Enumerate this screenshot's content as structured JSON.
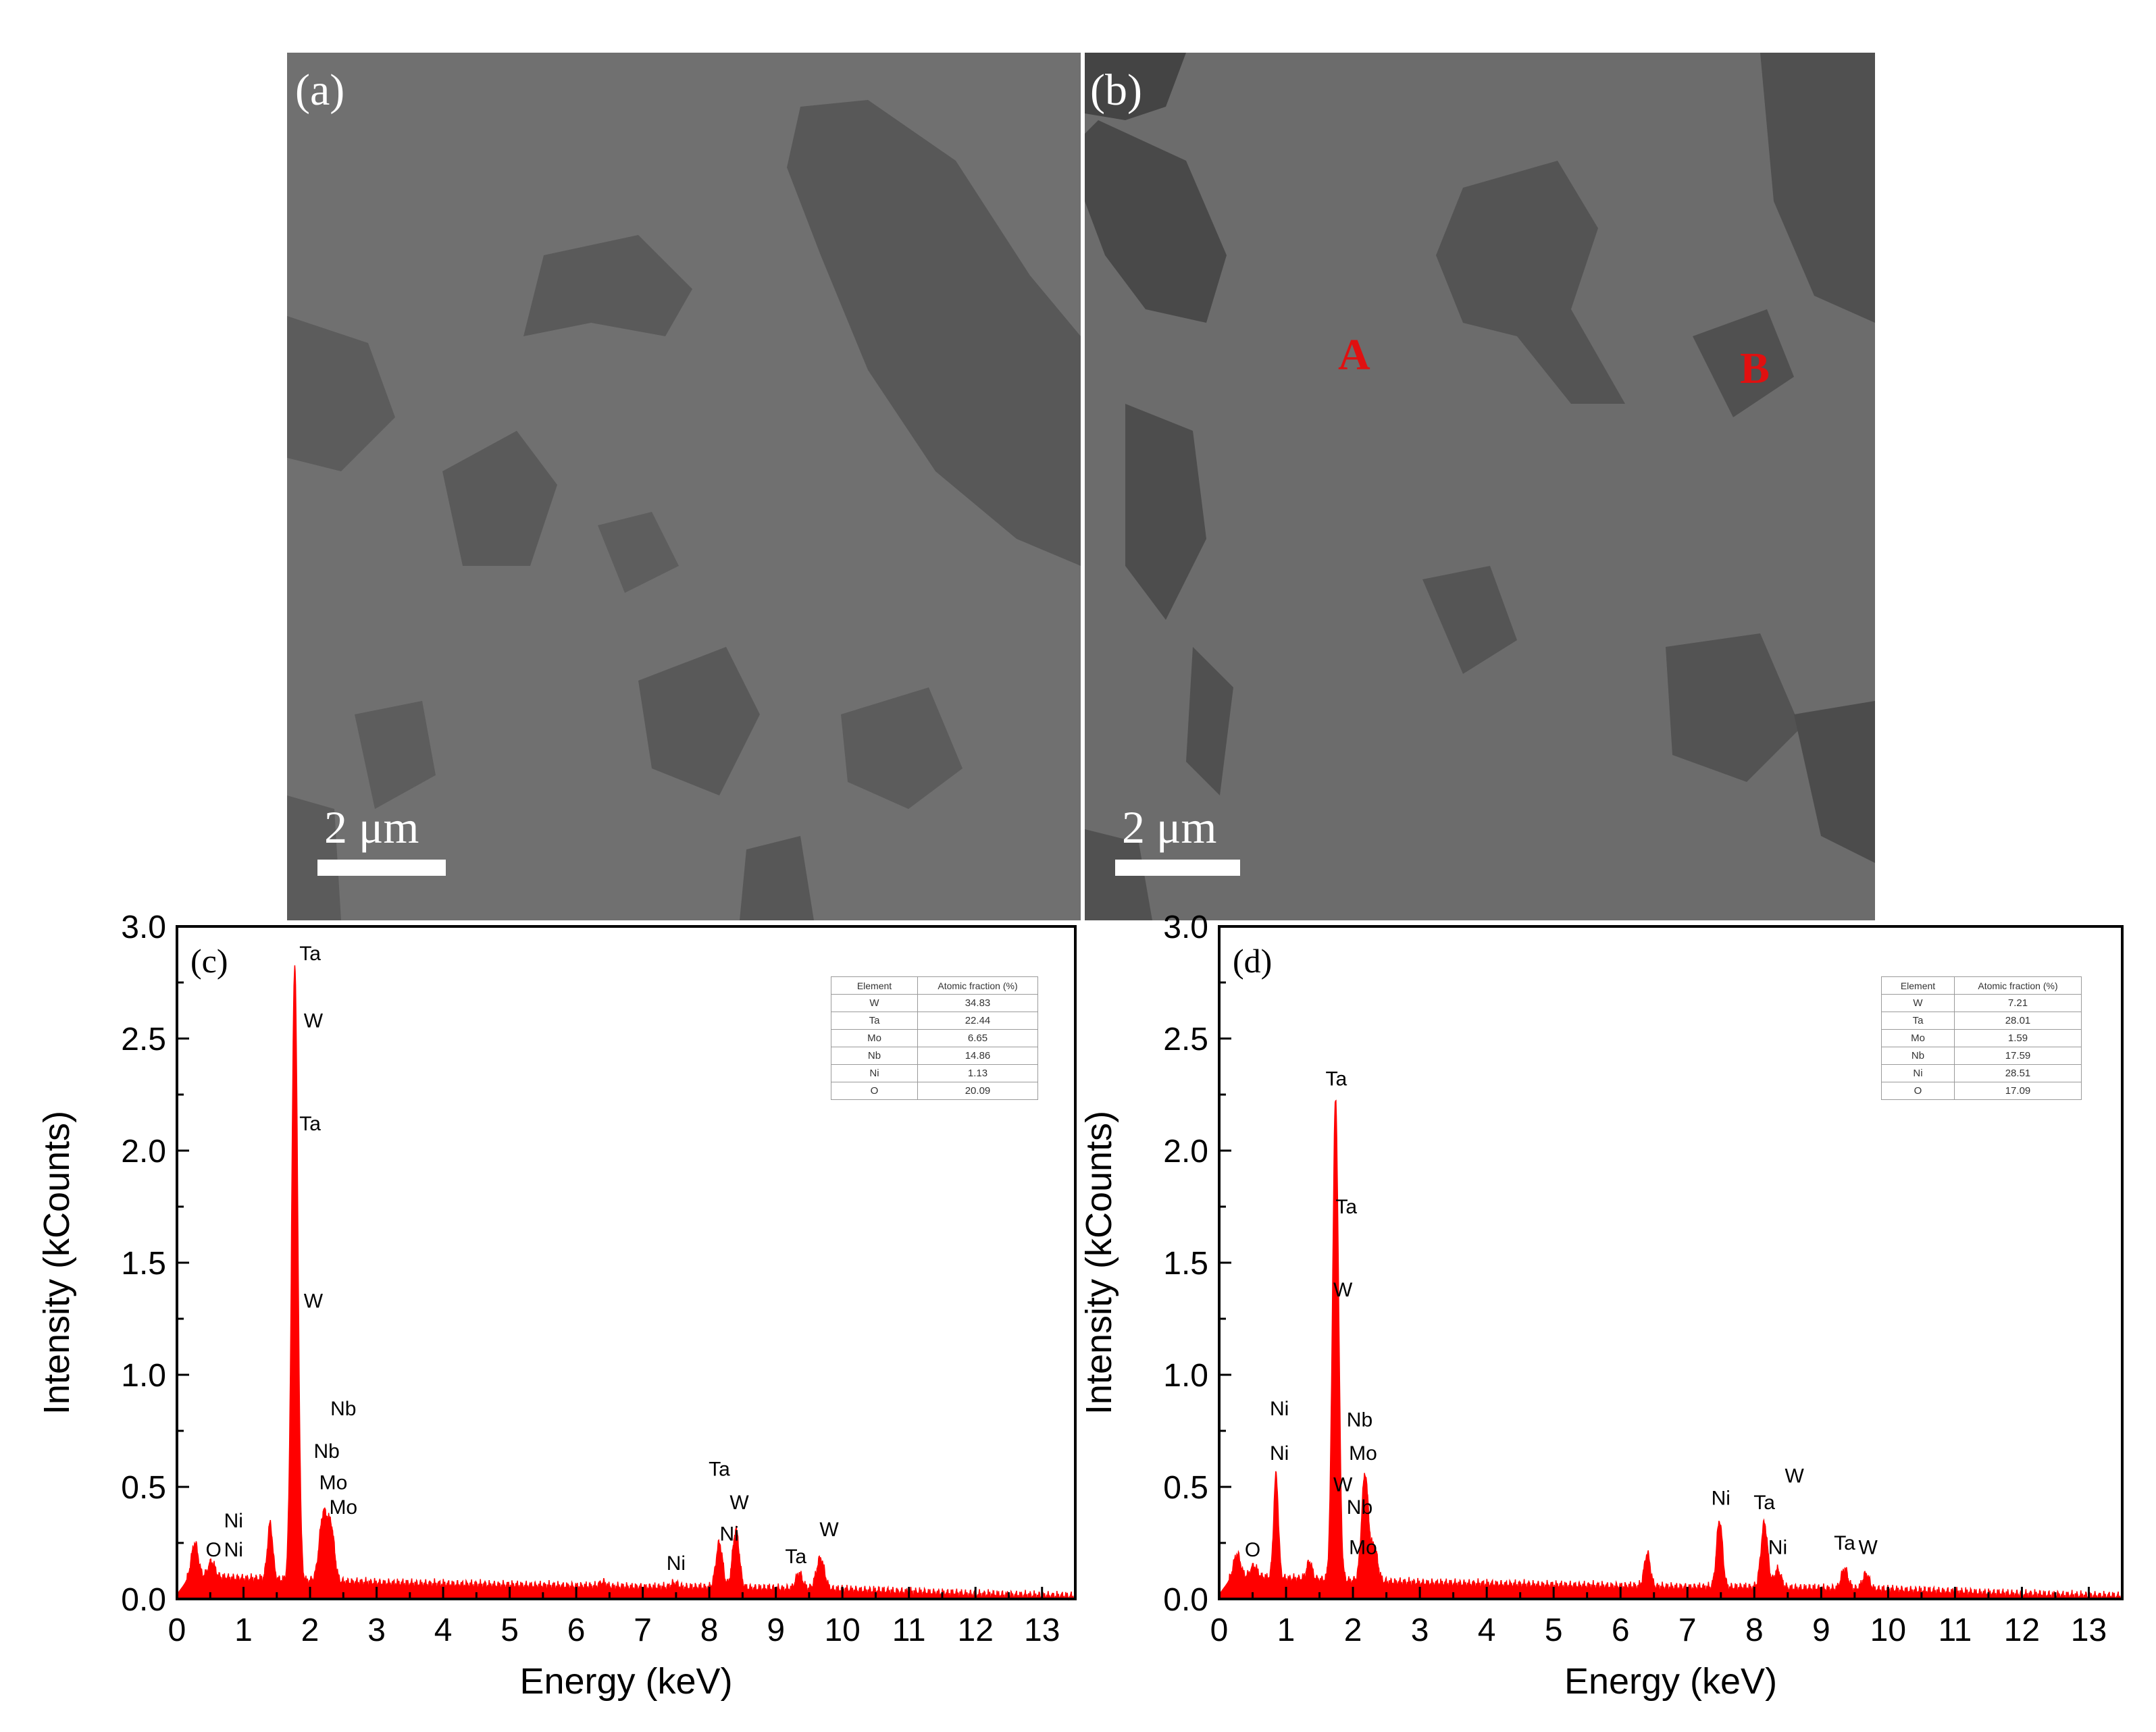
{
  "sem_panels": [
    {
      "tag": "(a)",
      "scale_label": "2 μm",
      "points": []
    },
    {
      "tag": "(b)",
      "scale_label": "2 μm",
      "points": [
        {
          "label": "A"
        },
        {
          "label": "B"
        }
      ]
    }
  ],
  "colors": {
    "spectrum_fill": "#ff0000",
    "point_label": "#e01010",
    "axis": "#000000"
  },
  "chart_data": [
    {
      "type": "area",
      "panel": "(c)",
      "xlabel": "Energy (keV)",
      "ylabel": "Intensity (kCounts)",
      "xlim": [
        0,
        13.5
      ],
      "ylim": [
        0,
        3.0
      ],
      "xticks": [
        0,
        1,
        2,
        3,
        4,
        5,
        6,
        7,
        8,
        9,
        10,
        11,
        12,
        13
      ],
      "yticks": [
        "0.0",
        "0.5",
        "1.0",
        "1.5",
        "2.0",
        "2.5",
        "3.0"
      ],
      "grid": false,
      "baseline": [
        [
          0,
          0.02
        ],
        [
          0.2,
          0.1
        ],
        [
          1,
          0.09
        ],
        [
          3,
          0.07
        ],
        [
          5,
          0.06
        ],
        [
          7,
          0.05
        ],
        [
          8,
          0.05
        ],
        [
          10,
          0.04
        ],
        [
          12,
          0.02
        ],
        [
          13.5,
          0.01
        ]
      ],
      "peaks": [
        {
          "x": 0.27,
          "y": 0.15,
          "w": 0.05
        },
        {
          "x": 0.52,
          "y": 0.07,
          "w": 0.05
        },
        {
          "x": 1.4,
          "y": 0.25,
          "w": 0.04
        },
        {
          "x": 1.77,
          "y": 2.75,
          "w": 0.045
        },
        {
          "x": 2.2,
          "y": 0.3,
          "w": 0.06
        },
        {
          "x": 2.32,
          "y": 0.22,
          "w": 0.05
        },
        {
          "x": 6.4,
          "y": 0.02,
          "w": 0.05
        },
        {
          "x": 7.48,
          "y": 0.02,
          "w": 0.05
        },
        {
          "x": 8.15,
          "y": 0.2,
          "w": 0.05
        },
        {
          "x": 8.4,
          "y": 0.26,
          "w": 0.05
        },
        {
          "x": 9.35,
          "y": 0.07,
          "w": 0.05
        },
        {
          "x": 9.67,
          "y": 0.14,
          "w": 0.06
        }
      ],
      "peak_labels": [
        {
          "x": 0.55,
          "y": 0.19,
          "text": "O"
        },
        {
          "x": 0.85,
          "y": 0.32,
          "text": "Ni"
        },
        {
          "x": 0.85,
          "y": 0.19,
          "text": "Ni"
        },
        {
          "x": 2.0,
          "y": 2.85,
          "text": "Ta"
        },
        {
          "x": 2.05,
          "y": 2.55,
          "text": "W"
        },
        {
          "x": 2.0,
          "y": 2.09,
          "text": "Ta"
        },
        {
          "x": 2.05,
          "y": 1.3,
          "text": "W"
        },
        {
          "x": 2.5,
          "y": 0.82,
          "text": "Nb"
        },
        {
          "x": 2.25,
          "y": 0.63,
          "text": "Nb"
        },
        {
          "x": 2.35,
          "y": 0.49,
          "text": "Mo"
        },
        {
          "x": 2.5,
          "y": 0.38,
          "text": "Mo"
        },
        {
          "x": 7.5,
          "y": 0.13,
          "text": "Ni"
        },
        {
          "x": 8.15,
          "y": 0.55,
          "text": "Ta"
        },
        {
          "x": 8.45,
          "y": 0.4,
          "text": "W"
        },
        {
          "x": 8.3,
          "y": 0.26,
          "text": "Ni"
        },
        {
          "x": 9.3,
          "y": 0.16,
          "text": "Ta"
        },
        {
          "x": 9.8,
          "y": 0.28,
          "text": "W"
        }
      ],
      "table": {
        "headers": [
          "Element",
          "Atomic fraction (%)"
        ],
        "rows": [
          [
            "W",
            "34.83"
          ],
          [
            "Ta",
            "22.44"
          ],
          [
            "Mo",
            "6.65"
          ],
          [
            "Nb",
            "14.86"
          ],
          [
            "Ni",
            "1.13"
          ],
          [
            "O",
            "20.09"
          ]
        ]
      }
    },
    {
      "type": "area",
      "panel": "(d)",
      "xlabel": "Energy (keV)",
      "ylabel": "Intensity (kCounts)",
      "xlim": [
        0,
        13.5
      ],
      "ylim": [
        0,
        3.0
      ],
      "xticks": [
        0,
        1,
        2,
        3,
        4,
        5,
        6,
        7,
        8,
        9,
        10,
        11,
        12,
        13
      ],
      "yticks": [
        "0.0",
        "0.5",
        "1.0",
        "1.5",
        "2.0",
        "2.5",
        "3.0"
      ],
      "grid": false,
      "baseline": [
        [
          0,
          0.02
        ],
        [
          0.2,
          0.1
        ],
        [
          1,
          0.09
        ],
        [
          3,
          0.07
        ],
        [
          5,
          0.06
        ],
        [
          7,
          0.05
        ],
        [
          8,
          0.05
        ],
        [
          10,
          0.04
        ],
        [
          12,
          0.02
        ],
        [
          13.5,
          0.01
        ]
      ],
      "peaks": [
        {
          "x": 0.27,
          "y": 0.1,
          "w": 0.05
        },
        {
          "x": 0.52,
          "y": 0.05,
          "w": 0.05
        },
        {
          "x": 0.85,
          "y": 0.46,
          "w": 0.035
        },
        {
          "x": 1.35,
          "y": 0.08,
          "w": 0.04
        },
        {
          "x": 1.74,
          "y": 2.14,
          "w": 0.045
        },
        {
          "x": 2.18,
          "y": 0.48,
          "w": 0.05
        },
        {
          "x": 2.32,
          "y": 0.15,
          "w": 0.05
        },
        {
          "x": 6.4,
          "y": 0.15,
          "w": 0.045
        },
        {
          "x": 7.48,
          "y": 0.3,
          "w": 0.045
        },
        {
          "x": 8.15,
          "y": 0.29,
          "w": 0.05
        },
        {
          "x": 8.35,
          "y": 0.08,
          "w": 0.05
        },
        {
          "x": 9.35,
          "y": 0.09,
          "w": 0.05
        },
        {
          "x": 9.67,
          "y": 0.07,
          "w": 0.05
        }
      ],
      "peak_labels": [
        {
          "x": 0.5,
          "y": 0.19,
          "text": "O"
        },
        {
          "x": 0.9,
          "y": 0.82,
          "text": "Ni"
        },
        {
          "x": 0.9,
          "y": 0.62,
          "text": "Ni"
        },
        {
          "x": 1.75,
          "y": 2.29,
          "text": "Ta"
        },
        {
          "x": 1.9,
          "y": 1.72,
          "text": "Ta"
        },
        {
          "x": 1.85,
          "y": 1.35,
          "text": "W"
        },
        {
          "x": 2.1,
          "y": 0.77,
          "text": "Nb"
        },
        {
          "x": 2.15,
          "y": 0.62,
          "text": "Mo"
        },
        {
          "x": 1.85,
          "y": 0.48,
          "text": "W"
        },
        {
          "x": 2.1,
          "y": 0.38,
          "text": "Nb"
        },
        {
          "x": 2.15,
          "y": 0.2,
          "text": "Mo"
        },
        {
          "x": 7.5,
          "y": 0.42,
          "text": "Ni"
        },
        {
          "x": 8.15,
          "y": 0.4,
          "text": "Ta"
        },
        {
          "x": 8.6,
          "y": 0.52,
          "text": "W"
        },
        {
          "x": 8.35,
          "y": 0.2,
          "text": "Ni"
        },
        {
          "x": 9.35,
          "y": 0.22,
          "text": "Ta"
        },
        {
          "x": 9.7,
          "y": 0.2,
          "text": "W"
        }
      ],
      "table": {
        "headers": [
          "Element",
          "Atomic fraction (%)"
        ],
        "rows": [
          [
            "W",
            "7.21"
          ],
          [
            "Ta",
            "28.01"
          ],
          [
            "Mo",
            "1.59"
          ],
          [
            "Nb",
            "17.59"
          ],
          [
            "Ni",
            "28.51"
          ],
          [
            "O",
            "17.09"
          ]
        ]
      }
    }
  ]
}
